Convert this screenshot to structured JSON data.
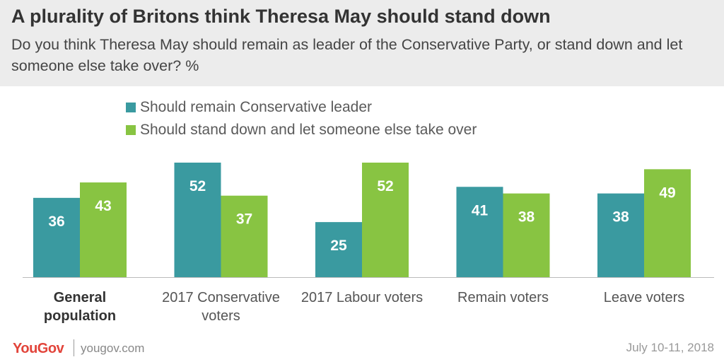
{
  "header": {
    "title": "A plurality of Britons think Theresa May should stand down",
    "subtitle": "Do you think Theresa May should remain as leader of the Conservative Party, or stand down and let someone else take over? %"
  },
  "legend": [
    {
      "label": "Should remain Conservative leader",
      "color": "#3a9aa0"
    },
    {
      "label": "Should stand down and let someone else take over",
      "color": "#88c442"
    }
  ],
  "chart_data": {
    "type": "bar",
    "title": "A plurality of Britons think Theresa May should stand down",
    "subtitle": "Do you think Theresa May should remain as leader of the Conservative Party, or stand down and let someone else take over? %",
    "categories": [
      [
        "General",
        "population"
      ],
      [
        "2017 Conservative",
        "voters"
      ],
      [
        "2017 Labour voters"
      ],
      [
        "Remain voters"
      ],
      [
        "Leave voters"
      ]
    ],
    "category_bold": [
      true,
      false,
      false,
      false,
      false
    ],
    "series": [
      {
        "name": "Should remain Conservative leader",
        "color": "#3a9aa0",
        "values": [
          36,
          52,
          25,
          41,
          38
        ]
      },
      {
        "name": "Should stand down and let someone else take over",
        "color": "#88c442",
        "values": [
          43,
          37,
          52,
          38,
          49
        ]
      }
    ],
    "ylim": [
      0,
      52
    ],
    "data_labels": true,
    "grid": false,
    "legend_position": "top-left"
  },
  "footer": {
    "logo": "YouGov",
    "url": "yougov.com",
    "date": "July 10-11, 2018"
  }
}
